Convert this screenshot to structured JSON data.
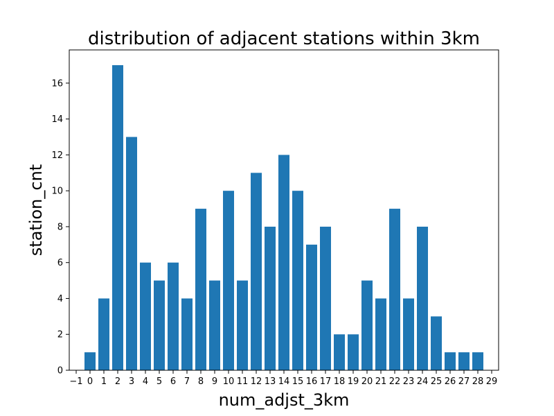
{
  "chart_data": {
    "type": "bar",
    "title": "distribution of adjacent stations within 3km",
    "xlabel": "num_adjst_3km",
    "ylabel": "station_cnt",
    "x": [
      0,
      1,
      2,
      3,
      4,
      5,
      6,
      7,
      8,
      9,
      10,
      11,
      12,
      13,
      14,
      15,
      16,
      17,
      18,
      19,
      20,
      21,
      22,
      23,
      24,
      25,
      26,
      27,
      28
    ],
    "values": [
      1,
      4,
      17,
      13,
      6,
      5,
      6,
      4,
      9,
      5,
      10,
      5,
      11,
      8,
      12,
      10,
      7,
      8,
      2,
      2,
      5,
      4,
      9,
      4,
      8,
      3,
      1,
      1,
      1
    ],
    "xticks": [
      "−1",
      "0",
      "1",
      "2",
      "3",
      "4",
      "5",
      "6",
      "7",
      "8",
      "9",
      "10",
      "11",
      "12",
      "13",
      "14",
      "15",
      "16",
      "17",
      "18",
      "19",
      "20",
      "21",
      "22",
      "23",
      "24",
      "25",
      "26",
      "27",
      "28",
      "29"
    ],
    "yticks": [
      "0",
      "2",
      "4",
      "6",
      "8",
      "10",
      "12",
      "14",
      "16"
    ],
    "xlim": [
      -1.5,
      29.5
    ],
    "ylim": [
      0,
      17.85
    ],
    "bar_color": "#1f77b4",
    "grid": false,
    "legend": "none"
  }
}
